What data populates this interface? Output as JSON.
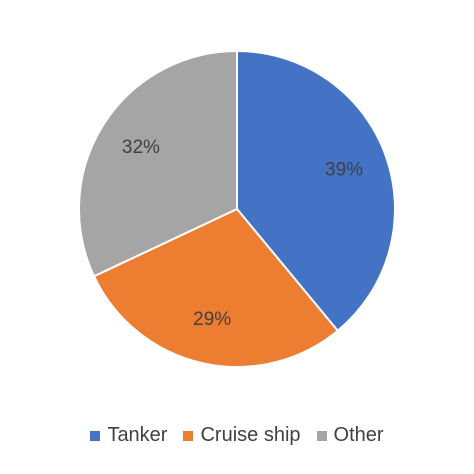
{
  "chart_data": {
    "type": "pie",
    "categories": [
      "Tanker",
      "Cruise ship",
      "Other"
    ],
    "values": [
      39,
      29,
      32
    ],
    "data_labels": [
      "39%",
      "29%",
      "32%"
    ],
    "colors": [
      "#4472C4",
      "#ED7D31",
      "#A5A5A5"
    ],
    "title": "",
    "start_angle_deg": 0,
    "direction": "clockwise",
    "legend_position": "bottom"
  }
}
